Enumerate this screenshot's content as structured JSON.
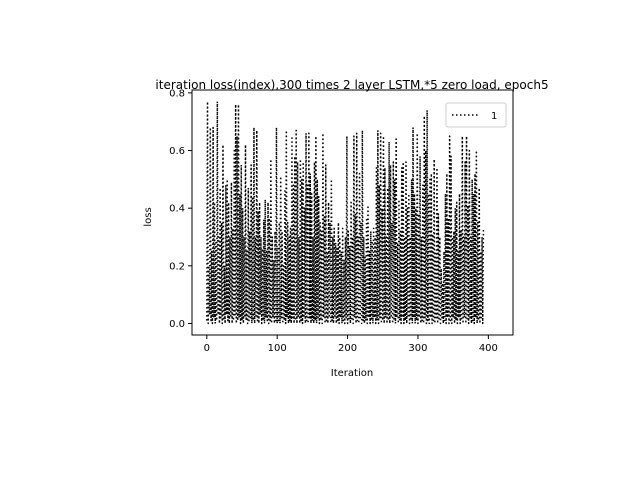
{
  "chart_data": {
    "type": "line",
    "title": "iteration loss(index),300 times 2 layer LSTM,*5 zero load, epoch5",
    "xlabel": "Iteration",
    "ylabel": "loss",
    "xlim": [
      -21,
      435
    ],
    "ylim": [
      -0.04,
      0.81
    ],
    "xticks": [
      0,
      100,
      200,
      300,
      400
    ],
    "xtick_labels": [
      "0",
      "100",
      "200",
      "300",
      "400"
    ],
    "yticks": [
      0.0,
      0.2,
      0.4,
      0.6,
      0.8
    ],
    "ytick_labels": [
      "0.0",
      "0.2",
      "0.4",
      "0.6",
      "0.8"
    ],
    "grid": false,
    "legend_position": "top-right",
    "series": [
      {
        "name": "1",
        "color": "#000000",
        "line_style": "dotted",
        "x_start": 0,
        "x_step": 1,
        "y": [
          0.01,
          0.77,
          0.0,
          0.2,
          0.03,
          0.68,
          0.01,
          0.25,
          0.0,
          0.68,
          0.02,
          0.42,
          0.0,
          0.28,
          0.01,
          0.77,
          0.03,
          0.3,
          0.0,
          0.47,
          0.02,
          0.35,
          0.0,
          0.62,
          0.01,
          0.2,
          0.0,
          0.48,
          0.03,
          0.5,
          0.01,
          0.42,
          0.0,
          0.3,
          0.02,
          0.49,
          0.0,
          0.33,
          0.01,
          0.6,
          0.03,
          0.76,
          0.0,
          0.65,
          0.01,
          0.76,
          0.02,
          0.45,
          0.0,
          0.55,
          0.01,
          0.4,
          0.0,
          0.3,
          0.02,
          0.62,
          0.01,
          0.25,
          0.0,
          0.47,
          0.01,
          0.32,
          0.02,
          0.55,
          0.0,
          0.44,
          0.01,
          0.68,
          0.0,
          0.3,
          0.02,
          0.67,
          0.01,
          0.39,
          0.0,
          0.42,
          0.03,
          0.3,
          0.0,
          0.26,
          0.01,
          0.36,
          0.0,
          0.43,
          0.02,
          0.25,
          0.01,
          0.42,
          0.0,
          0.36,
          0.01,
          0.57,
          0.0,
          0.3,
          0.02,
          0.22,
          0.0,
          0.32,
          0.01,
          0.68,
          0.0,
          0.26,
          0.01,
          0.35,
          0.0,
          0.51,
          0.02,
          0.32,
          0.0,
          0.2,
          0.01,
          0.46,
          0.0,
          0.67,
          0.02,
          0.35,
          0.0,
          0.3,
          0.01,
          0.33,
          0.0,
          0.65,
          0.02,
          0.48,
          0.0,
          0.58,
          0.01,
          0.67,
          0.0,
          0.56,
          0.02,
          0.3,
          0.0,
          0.57,
          0.01,
          0.5,
          0.0,
          0.56,
          0.02,
          0.4,
          0.0,
          0.66,
          0.01,
          0.48,
          0.0,
          0.66,
          0.02,
          0.52,
          0.0,
          0.45,
          0.01,
          0.3,
          0.0,
          0.56,
          0.01,
          0.65,
          0.0,
          0.5,
          0.02,
          0.44,
          0.0,
          0.35,
          0.01,
          0.32,
          0.0,
          0.66,
          0.02,
          0.37,
          0.0,
          0.55,
          0.01,
          0.25,
          0.0,
          0.42,
          0.02,
          0.35,
          0.0,
          0.5,
          0.01,
          0.3,
          0.0,
          0.33,
          0.02,
          0.28,
          0.0,
          0.26,
          0.01,
          0.35,
          0.0,
          0.3,
          0.02,
          0.25,
          0.0,
          0.33,
          0.01,
          0.22,
          0.0,
          0.3,
          0.02,
          0.65,
          0.0,
          0.32,
          0.01,
          0.27,
          0.0,
          0.42,
          0.01,
          0.3,
          0.0,
          0.65,
          0.02,
          0.38,
          0.0,
          0.66,
          0.01,
          0.3,
          0.0,
          0.52,
          0.02,
          0.35,
          0.0,
          0.67,
          0.01,
          0.3,
          0.0,
          0.23,
          0.01,
          0.36,
          0.0,
          0.41,
          0.02,
          0.25,
          0.0,
          0.32,
          0.01,
          0.28,
          0.0,
          0.33,
          0.02,
          0.3,
          0.0,
          0.54,
          0.01,
          0.67,
          0.0,
          0.48,
          0.02,
          0.66,
          0.0,
          0.4,
          0.01,
          0.65,
          0.0,
          0.54,
          0.02,
          0.3,
          0.0,
          0.47,
          0.01,
          0.63,
          0.0,
          0.55,
          0.02,
          0.35,
          0.0,
          0.56,
          0.01,
          0.5,
          0.0,
          0.64,
          0.02,
          0.28,
          0.0,
          0.43,
          0.01,
          0.32,
          0.0,
          0.54,
          0.02,
          0.56,
          0.0,
          0.3,
          0.01,
          0.56,
          0.0,
          0.4,
          0.02,
          0.45,
          0.0,
          0.3,
          0.01,
          0.5,
          0.0,
          0.68,
          0.02,
          0.45,
          0.0,
          0.4,
          0.01,
          0.66,
          0.0,
          0.38,
          0.02,
          0.58,
          0.0,
          0.3,
          0.01,
          0.48,
          0.0,
          0.72,
          0.02,
          0.6,
          0.0,
          0.74,
          0.01,
          0.45,
          0.0,
          0.5,
          0.02,
          0.52,
          0.0,
          0.31,
          0.01,
          0.57,
          0.0,
          0.25,
          0.02,
          0.54,
          0.0,
          0.38,
          0.01,
          0.3,
          0.0,
          0.19,
          0.02,
          0.14,
          0.0,
          0.25,
          0.01,
          0.45,
          0.0,
          0.52,
          0.02,
          0.36,
          0.0,
          0.65,
          0.01,
          0.58,
          0.0,
          0.3,
          0.02,
          0.32,
          0.0,
          0.4,
          0.01,
          0.42,
          0.0,
          0.25,
          0.02,
          0.45,
          0.0,
          0.32,
          0.01,
          0.65,
          0.0,
          0.3,
          0.02,
          0.56,
          0.0,
          0.65,
          0.01,
          0.41,
          0.0,
          0.6,
          0.02,
          0.3,
          0.0,
          0.5,
          0.01,
          0.45,
          0.0,
          0.52,
          0.02,
          0.6,
          0.0,
          0.35,
          0.01,
          0.47,
          0.0,
          0.25,
          0.02,
          0.3,
          0.0,
          0.33
        ]
      }
    ]
  }
}
